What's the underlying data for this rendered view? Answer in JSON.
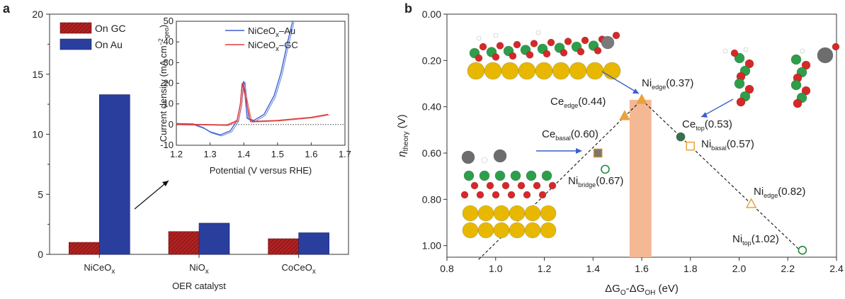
{
  "panel_a": {
    "label": "a",
    "legend": [
      {
        "name": "On GC",
        "color": "#b22222"
      },
      {
        "name": "On Au",
        "color": "#2a3e9e"
      }
    ],
    "inset": {
      "legend": [
        {
          "base": "NiCeO",
          "sub": "x",
          "suffix": "–Au",
          "color": "#3a5fcd"
        },
        {
          "base": "NiCeO",
          "sub": "x",
          "suffix": "–GC",
          "color": "#e03c3c"
        }
      ],
      "ylabel_pre": "Current density (mA cm",
      "ylabel_sup": "−2",
      "ylabel_sub": "geo",
      "ylabel_post": ")",
      "xlabel": "Potential (V  versus RHE)",
      "xticks": [
        "1.2",
        "1.3",
        "1.4",
        "1.5",
        "1.6",
        "1.7"
      ],
      "yticks": [
        "-10",
        "0",
        "10",
        "20",
        "30",
        "40",
        "50"
      ]
    }
  },
  "panel_b": {
    "label": "b",
    "annotations": [
      {
        "id": "ni-edge-top",
        "base": "Ni",
        "sub": "edge",
        "value": "(0.37)"
      },
      {
        "id": "ce-edge",
        "base": "Ce",
        "sub": "edge",
        "value": "(0.44)"
      },
      {
        "id": "ce-basal",
        "base": "Ce",
        "sub": "basal",
        "value": "(0.60)"
      },
      {
        "id": "ni-bridge",
        "base": "Ni",
        "sub": "bridge",
        "value": "(0.67)"
      },
      {
        "id": "ce-top",
        "base": "Ce",
        "sub": "top",
        "value": "(0.53)"
      },
      {
        "id": "ni-basal",
        "base": "Ni",
        "sub": "basal",
        "value": "(0.57)"
      },
      {
        "id": "ni-edge-low",
        "base": "Ni",
        "sub": "edge",
        "value": "(0.82)"
      },
      {
        "id": "ni-top",
        "base": "Ni",
        "sub": "top",
        "value": "(1.02)"
      }
    ],
    "ylabel_base": "η",
    "ylabel_sub": "theory",
    "ylabel_suffix": " (V)",
    "xlabel_text": "ΔG",
    "xlabel_sub1": "O",
    "xlabel_mid": "-ΔG",
    "xlabel_sub2": "OH",
    "xlabel_suffix": " (eV)"
  },
  "chart_data": [
    {
      "type": "bar",
      "xlabel": "OER catalyst",
      "ylabel": "",
      "ylim": [
        0,
        20
      ],
      "yticks": [
        0,
        5,
        10,
        15,
        20
      ],
      "categories": [
        {
          "base": "NiCeO",
          "sub": "x"
        },
        {
          "base": "NiO",
          "sub": "x"
        },
        {
          "base": "CoCeO",
          "sub": "x"
        }
      ],
      "series": [
        {
          "name": "On GC",
          "values": [
            1.0,
            1.9,
            1.3
          ]
        },
        {
          "name": "On Au",
          "values": [
            13.3,
            2.6,
            1.8
          ]
        }
      ],
      "legend_position": "top-left"
    },
    {
      "type": "line",
      "xlabel": "Potential (V  versus RHE)",
      "ylabel": "Current density (mA cm−2geo)",
      "xlim": [
        1.2,
        1.7
      ],
      "ylim": [
        -10,
        50
      ],
      "series": [
        {
          "name": "NiCeOx–Au",
          "x": [
            1.2,
            1.25,
            1.28,
            1.3,
            1.33,
            1.36,
            1.38,
            1.39,
            1.395,
            1.4,
            1.41,
            1.43,
            1.46,
            1.49,
            1.51,
            1.53,
            1.545
          ],
          "y": [
            0.5,
            0.3,
            -1.5,
            -3.5,
            -5,
            -3,
            2,
            10,
            19,
            21,
            3,
            2,
            5,
            14,
            25,
            40,
            50
          ]
        },
        {
          "name": "NiCeOx–GC",
          "x": [
            1.2,
            1.3,
            1.35,
            1.38,
            1.39,
            1.395,
            1.4,
            1.42,
            1.5,
            1.6,
            1.65
          ],
          "y": [
            0.2,
            0,
            -0.2,
            2,
            10,
            20,
            17,
            1.5,
            2,
            3.5,
            5
          ]
        }
      ]
    },
    {
      "type": "scatter",
      "xlabel": "ΔGO-ΔGOH (eV)",
      "ylabel": "ηtheory (V)",
      "xlim": [
        0.8,
        2.4
      ],
      "ylim": [
        1.05,
        0.0
      ],
      "y_inverted": true,
      "xticks": [
        0.8,
        1.0,
        1.2,
        1.4,
        1.6,
        1.8,
        2.0,
        2.2,
        2.4
      ],
      "yticks": [
        0.0,
        0.2,
        0.4,
        0.6,
        0.8,
        1.0
      ],
      "volcano_lines": [
        {
          "x": [
            0.93,
            1.6
          ],
          "y": [
            1.06,
            0.37
          ]
        },
        {
          "x": [
            1.6,
            2.26
          ],
          "y": [
            0.37,
            1.03
          ]
        }
      ],
      "highlight_band": {
        "x": [
          1.55,
          1.64
        ],
        "color": "#f5b895"
      },
      "points": [
        {
          "label": "Ni_edge",
          "x": 1.6,
          "y": 0.37,
          "marker": "triangle",
          "filled": true,
          "color": "#e8a33a"
        },
        {
          "label": "Ce_edge",
          "x": 1.53,
          "y": 0.44,
          "marker": "triangle",
          "filled": true,
          "color": "#e8a33a"
        },
        {
          "label": "Ce_basal",
          "x": 1.42,
          "y": 0.6,
          "marker": "square",
          "filled": true,
          "color": "#777777"
        },
        {
          "label": "Ni_bridge",
          "x": 1.45,
          "y": 0.67,
          "marker": "circle",
          "filled": false,
          "color": "#1f8a3a"
        },
        {
          "label": "Ce_top",
          "x": 1.76,
          "y": 0.53,
          "marker": "circle",
          "filled": true,
          "color": "#3b6e4e"
        },
        {
          "label": "Ni_basal",
          "x": 1.8,
          "y": 0.57,
          "marker": "square",
          "filled": false,
          "color": "#e8a33a"
        },
        {
          "label": "Ni_edge",
          "x": 2.05,
          "y": 0.82,
          "marker": "triangle",
          "filled": false,
          "color": "#e8a33a"
        },
        {
          "label": "Ni_top",
          "x": 2.26,
          "y": 1.02,
          "marker": "circle",
          "filled": false,
          "color": "#1f8a3a"
        }
      ]
    }
  ]
}
